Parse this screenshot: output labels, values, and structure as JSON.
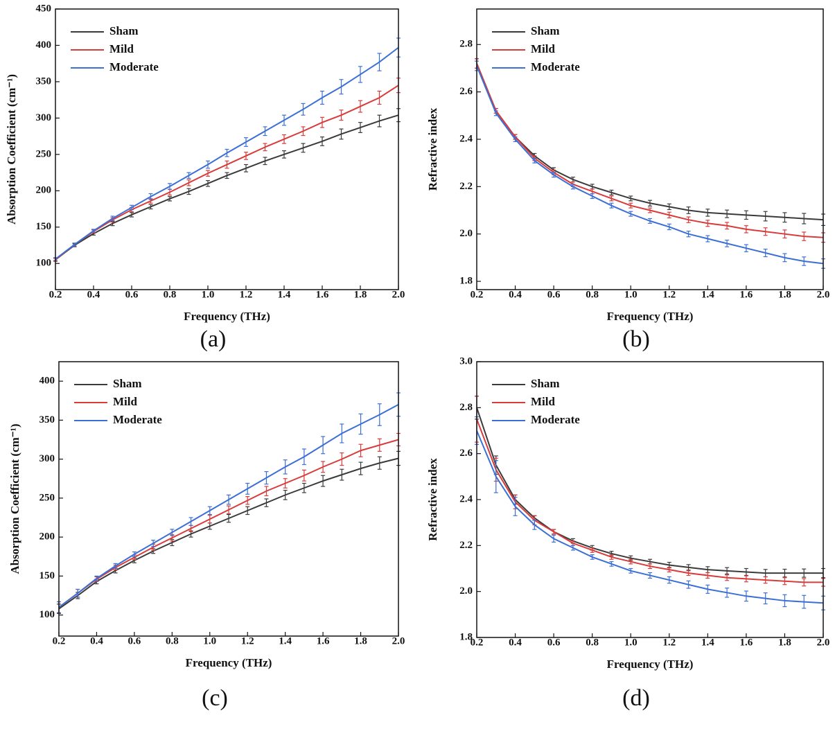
{
  "chart_data": [
    {
      "type": "line",
      "caption": "(a)",
      "x_label": "Frequency (THz)",
      "y_label": "Absorption Coefficient (cm⁻¹)",
      "x": [
        0.2,
        0.3,
        0.4,
        0.5,
        0.6,
        0.7,
        0.8,
        0.9,
        1.0,
        1.1,
        1.2,
        1.3,
        1.4,
        1.5,
        1.6,
        1.7,
        1.8,
        1.9,
        2.0
      ],
      "series": [
        {
          "name": "Sham",
          "color": "#3a3a3a",
          "values": [
            105,
            125,
            141,
            155,
            167,
            178,
            189,
            199,
            210,
            221,
            231,
            241,
            250,
            259,
            268,
            278,
            287,
            296,
            304
          ],
          "errors": [
            2,
            2,
            2,
            3,
            3,
            3,
            3,
            4,
            4,
            4,
            5,
            5,
            5,
            6,
            6,
            7,
            7,
            8,
            9
          ]
        },
        {
          "name": "Mild",
          "color": "#d93a3a",
          "values": [
            105,
            126,
            144,
            160,
            174,
            186,
            198,
            211,
            224,
            236,
            248,
            260,
            271,
            282,
            294,
            304,
            316,
            328,
            345
          ],
          "errors": [
            2,
            2,
            2,
            3,
            3,
            3,
            4,
            4,
            4,
            5,
            5,
            5,
            6,
            6,
            7,
            7,
            8,
            9,
            10
          ]
        },
        {
          "name": "Moderate",
          "color": "#3b6fd6",
          "values": [
            106,
            126,
            145,
            162,
            177,
            192,
            206,
            221,
            236,
            252,
            267,
            282,
            297,
            312,
            328,
            343,
            360,
            377,
            397
          ],
          "errors": [
            2,
            2,
            2,
            3,
            3,
            4,
            4,
            4,
            5,
            5,
            6,
            6,
            7,
            8,
            9,
            10,
            11,
            12,
            13
          ]
        }
      ],
      "xlim": [
        0.2,
        2.0
      ],
      "ylim": [
        64,
        450
      ],
      "xticks": [
        0.2,
        0.4,
        0.6,
        0.8,
        {
          "value": 1.0,
          "label": "1.0"
        },
        1.2,
        1.4,
        1.6,
        1.8,
        {
          "value": 2.0,
          "label": "2.0"
        }
      ],
      "yticks": [
        100,
        150,
        200,
        250,
        300,
        350,
        400,
        450
      ]
    },
    {
      "type": "line",
      "caption": "(b)",
      "x_label": "Frequency (THz)",
      "y_label": "Refractive index",
      "x": [
        0.2,
        0.3,
        0.4,
        0.5,
        0.6,
        0.7,
        0.8,
        0.9,
        1.0,
        1.1,
        1.2,
        1.3,
        1.4,
        1.5,
        1.6,
        1.7,
        1.8,
        1.9,
        2.0
      ],
      "series": [
        {
          "name": "Sham",
          "color": "#3a3a3a",
          "values": [
            2.72,
            2.52,
            2.41,
            2.33,
            2.27,
            2.23,
            2.2,
            2.175,
            2.15,
            2.13,
            2.115,
            2.1,
            2.09,
            2.085,
            2.08,
            2.075,
            2.07,
            2.065,
            2.06
          ],
          "errors": [
            0.02,
            0.01,
            0.01,
            0.01,
            0.01,
            0.01,
            0.01,
            0.01,
            0.01,
            0.012,
            0.012,
            0.014,
            0.015,
            0.016,
            0.018,
            0.02,
            0.02,
            0.022,
            0.024
          ]
        },
        {
          "name": "Mild",
          "color": "#d93a3a",
          "values": [
            2.72,
            2.52,
            2.41,
            2.32,
            2.26,
            2.21,
            2.18,
            2.15,
            2.12,
            2.1,
            2.08,
            2.06,
            2.045,
            2.035,
            2.02,
            2.01,
            2.0,
            1.99,
            1.985
          ],
          "errors": [
            0.02,
            0.01,
            0.01,
            0.01,
            0.01,
            0.01,
            0.01,
            0.01,
            0.01,
            0.01,
            0.012,
            0.012,
            0.013,
            0.014,
            0.015,
            0.016,
            0.017,
            0.018,
            0.02
          ]
        },
        {
          "name": "Moderate",
          "color": "#3b6fd6",
          "values": [
            2.71,
            2.51,
            2.4,
            2.31,
            2.25,
            2.2,
            2.16,
            2.12,
            2.085,
            2.055,
            2.03,
            2.0,
            1.98,
            1.96,
            1.94,
            1.92,
            1.9,
            1.885,
            1.875
          ],
          "errors": [
            0.02,
            0.01,
            0.01,
            0.01,
            0.01,
            0.01,
            0.01,
            0.01,
            0.01,
            0.01,
            0.012,
            0.012,
            0.013,
            0.014,
            0.015,
            0.016,
            0.017,
            0.018,
            0.02
          ]
        }
      ],
      "xlim": [
        0.2,
        2.0
      ],
      "ylim": [
        1.765,
        2.95
      ],
      "xticks": [
        0.2,
        0.4,
        0.6,
        0.8,
        {
          "value": 1.0,
          "label": "1.0"
        },
        1.2,
        1.4,
        1.6,
        1.8,
        {
          "value": 2.0,
          "label": "2.0"
        }
      ],
      "yticks": [
        1.8,
        {
          "value": 2.0,
          "label": "2.0"
        },
        2.2,
        2.4,
        2.6,
        2.8
      ]
    },
    {
      "type": "line",
      "caption": "(c)",
      "x_label": "Frequency (THz)",
      "y_label": "Absorption Coefficient (cm⁻¹)",
      "x": [
        0.2,
        0.3,
        0.4,
        0.5,
        0.6,
        0.7,
        0.8,
        0.9,
        1.0,
        1.1,
        1.2,
        1.3,
        1.4,
        1.5,
        1.6,
        1.7,
        1.8,
        1.9,
        2.0
      ],
      "series": [
        {
          "name": "Sham",
          "color": "#3a3a3a",
          "values": [
            108,
            125,
            143,
            157,
            170,
            182,
            193,
            204,
            214,
            224,
            234,
            244,
            254,
            263,
            272,
            280,
            288,
            295,
            301
          ],
          "errors": [
            6,
            4,
            3,
            3,
            3,
            3,
            4,
            4,
            4,
            5,
            5,
            5,
            6,
            6,
            7,
            7,
            8,
            8,
            9
          ]
        },
        {
          "name": "Mild",
          "color": "#d93a3a",
          "values": [
            110,
            128,
            146,
            161,
            174,
            187,
            199,
            211,
            223,
            235,
            247,
            259,
            269,
            279,
            290,
            300,
            311,
            318,
            325
          ],
          "errors": [
            7,
            5,
            3,
            3,
            3,
            4,
            4,
            4,
            5,
            5,
            5,
            6,
            6,
            7,
            7,
            8,
            8,
            8,
            8
          ]
        },
        {
          "name": "Moderate",
          "color": "#3b6fd6",
          "values": [
            110,
            128,
            147,
            163,
            178,
            192,
            206,
            220,
            234,
            248,
            262,
            276,
            290,
            303,
            318,
            333,
            345,
            357,
            370
          ],
          "errors": [
            7,
            5,
            3,
            3,
            3,
            4,
            4,
            5,
            5,
            6,
            7,
            8,
            9,
            10,
            11,
            12,
            13,
            14,
            15
          ]
        }
      ],
      "xlim": [
        0.2,
        2.0
      ],
      "ylim": [
        73,
        425
      ],
      "xticks": [
        0.2,
        0.4,
        0.6,
        0.8,
        {
          "value": 1.0,
          "label": "1.0"
        },
        1.2,
        1.4,
        1.6,
        1.8,
        {
          "value": 2.0,
          "label": "2.0"
        }
      ],
      "yticks": [
        100,
        150,
        200,
        250,
        300,
        350,
        400
      ]
    },
    {
      "type": "line",
      "caption": "(d)",
      "x_label": "Frequency (THz)",
      "y_label": "Refractive index",
      "x": [
        0.2,
        0.3,
        0.4,
        0.5,
        0.6,
        0.7,
        0.8,
        0.9,
        1.0,
        1.1,
        1.2,
        1.3,
        1.4,
        1.5,
        1.6,
        1.7,
        1.8,
        1.9,
        2.0
      ],
      "series": [
        {
          "name": "Sham",
          "color": "#3a3a3a",
          "values": [
            2.8,
            2.55,
            2.4,
            2.32,
            2.26,
            2.22,
            2.19,
            2.165,
            2.145,
            2.13,
            2.115,
            2.105,
            2.095,
            2.09,
            2.085,
            2.08,
            2.08,
            2.08,
            2.08
          ],
          "errors": [
            0.05,
            0.04,
            0.02,
            0.01,
            0.01,
            0.01,
            0.01,
            0.01,
            0.01,
            0.01,
            0.012,
            0.012,
            0.013,
            0.014,
            0.015,
            0.016,
            0.017,
            0.018,
            0.02
          ]
        },
        {
          "name": "Mild",
          "color": "#d93a3a",
          "values": [
            2.75,
            2.53,
            2.39,
            2.31,
            2.26,
            2.21,
            2.18,
            2.15,
            2.13,
            2.11,
            2.095,
            2.08,
            2.07,
            2.06,
            2.055,
            2.05,
            2.045,
            2.04,
            2.04
          ],
          "errors": [
            0.1,
            0.05,
            0.03,
            0.02,
            0.01,
            0.01,
            0.01,
            0.01,
            0.01,
            0.01,
            0.01,
            0.01,
            0.012,
            0.012,
            0.013,
            0.014,
            0.015,
            0.016,
            0.017
          ]
        },
        {
          "name": "Moderate",
          "color": "#3b6fd6",
          "values": [
            2.7,
            2.5,
            2.37,
            2.29,
            2.23,
            2.19,
            2.15,
            2.12,
            2.09,
            2.07,
            2.05,
            2.03,
            2.01,
            1.995,
            1.98,
            1.97,
            1.96,
            1.955,
            1.95
          ],
          "errors": [
            0.06,
            0.07,
            0.04,
            0.02,
            0.015,
            0.01,
            0.01,
            0.01,
            0.01,
            0.012,
            0.014,
            0.016,
            0.018,
            0.02,
            0.022,
            0.024,
            0.026,
            0.028,
            0.03
          ]
        }
      ],
      "xlim": [
        0.2,
        2.0
      ],
      "ylim": [
        1.8,
        3.0
      ],
      "xticks": [
        0.2,
        0.4,
        0.6,
        0.8,
        {
          "value": 1.0,
          "label": "1.0"
        },
        1.2,
        1.4,
        1.6,
        1.8,
        {
          "value": 2.0,
          "label": "2.0"
        }
      ],
      "yticks": [
        1.8,
        {
          "value": 2.0,
          "label": "2.0"
        },
        2.2,
        2.4,
        2.6,
        2.8,
        {
          "value": 3.0,
          "label": "3.0"
        }
      ]
    }
  ]
}
